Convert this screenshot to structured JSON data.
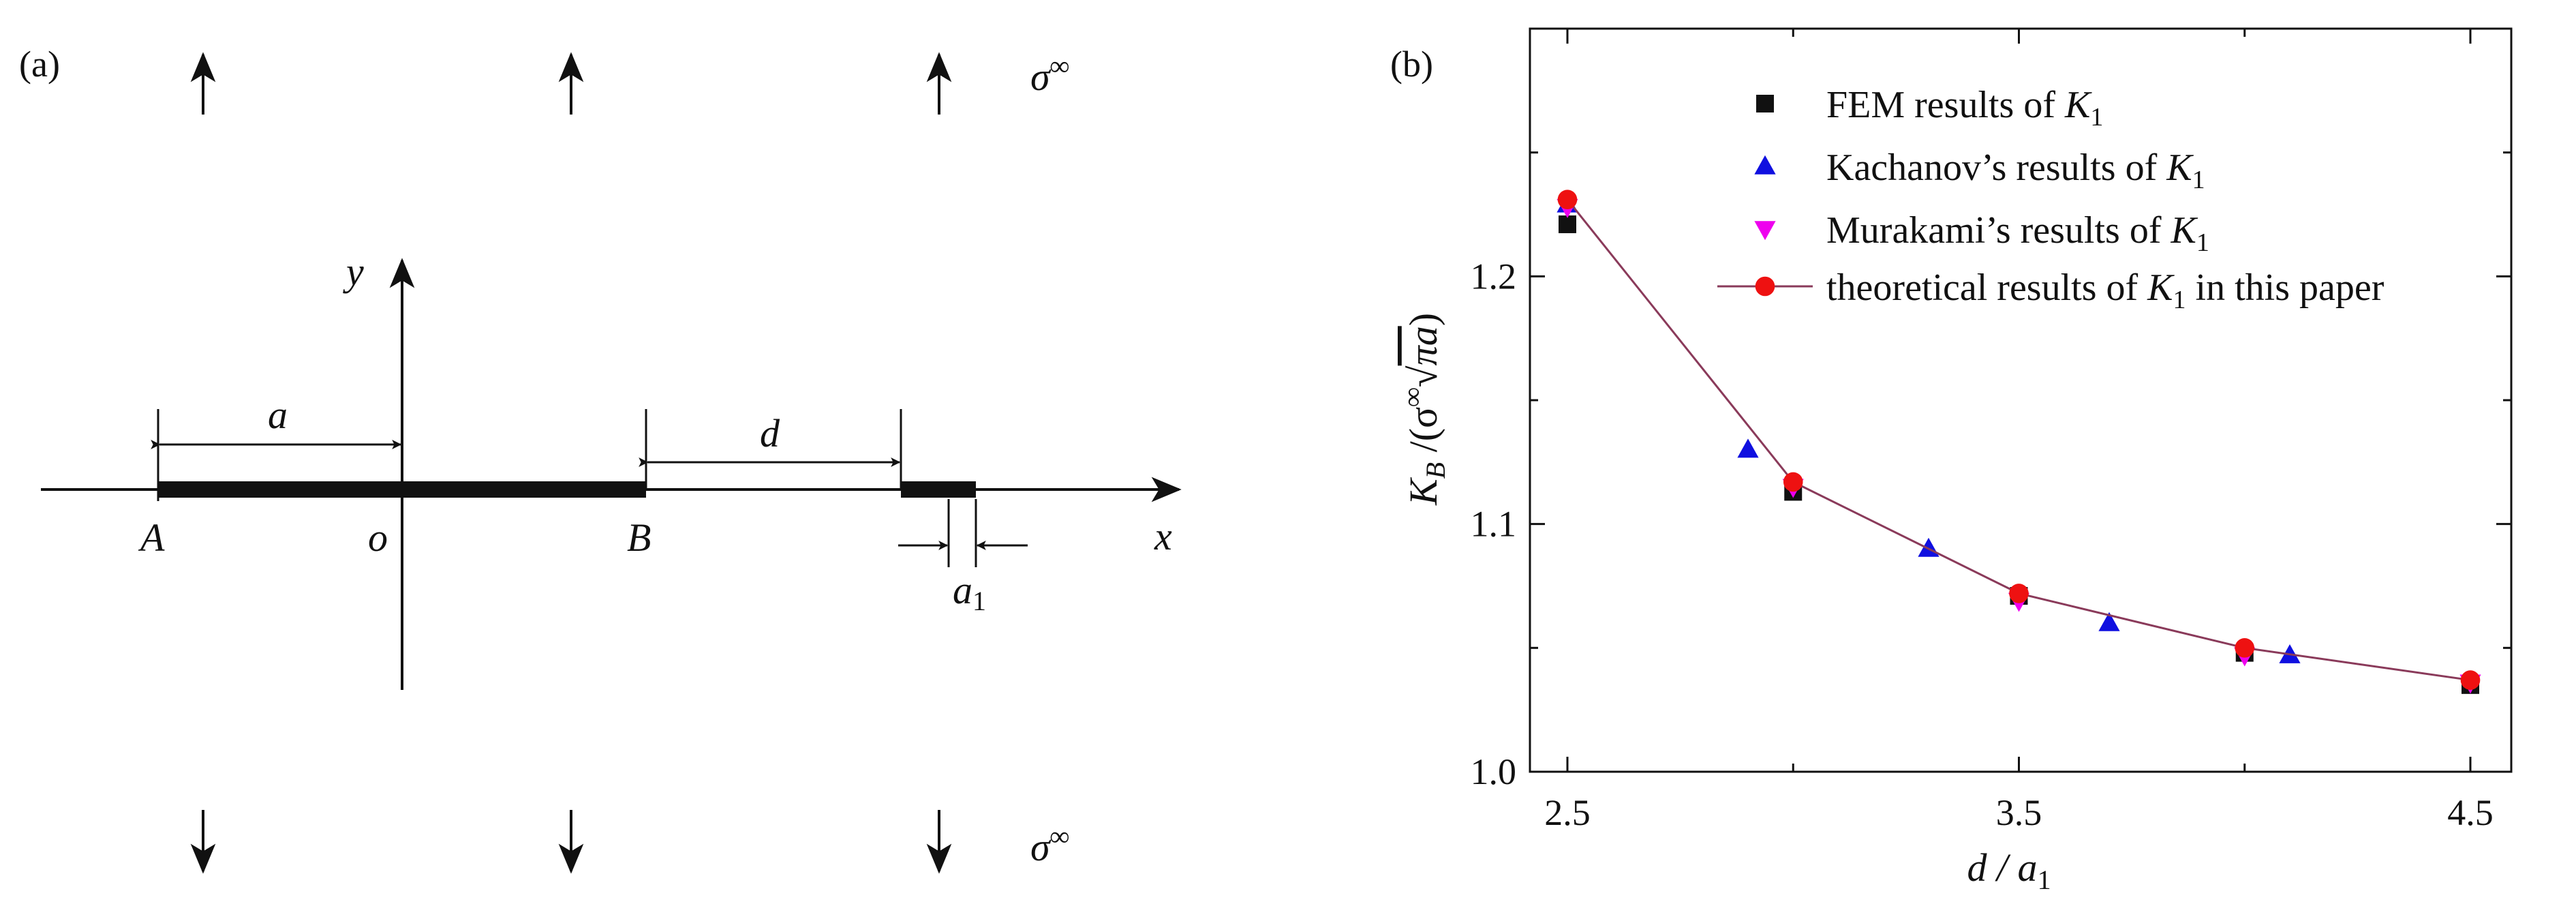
{
  "figure": {
    "panel_a_label": "(a)",
    "panel_b_label": "(b)"
  },
  "diagram": {
    "stress_label": "σ",
    "stress_sup": "∞",
    "y_axis_label": "y",
    "x_axis_label": "x",
    "point_A": "A",
    "origin": "o",
    "point_B": "B",
    "dim_a": "a",
    "dim_d": "d",
    "dim_a1": "a",
    "dim_a1_sub": "1"
  },
  "chart_data": {
    "type": "scatter",
    "xlabel": {
      "main": "d / a",
      "sub": "1"
    },
    "ylabel": {
      "main": "K",
      "sub": "B",
      "rest1": " /(σ",
      "sup": "∞",
      "rest2": "√",
      "over": "πa",
      "rest3": ")"
    },
    "x_ticks": [
      "2.5",
      "3.5",
      "4.5"
    ],
    "y_ticks": [
      "1.0",
      "1.1",
      "1.2"
    ],
    "xlim": [
      2.5,
      4.5
    ],
    "ylim": [
      1.0,
      1.3
    ],
    "legend_position": "top-right",
    "series": [
      {
        "name": "FEM results of K",
        "name_sub": "1",
        "marker": "square",
        "color": "#111111",
        "x": [
          2.5,
          3.0,
          3.5,
          4.0,
          4.5
        ],
        "y": [
          1.221,
          1.113,
          1.071,
          1.048,
          1.035
        ]
      },
      {
        "name": "Kachanov’s results of K",
        "name_sub": "1",
        "marker": "triangle-up",
        "color": "#1010e0",
        "x": [
          2.5,
          2.9,
          3.3,
          3.7,
          4.1
        ],
        "y": [
          1.229,
          1.13,
          1.09,
          1.06,
          1.047
        ]
      },
      {
        "name": "Murakami’s results of K",
        "name_sub": "1",
        "marker": "triangle-down",
        "color": "#ee00ee",
        "x": [
          2.5,
          3.0,
          3.5,
          4.0,
          4.5
        ],
        "y": [
          1.228,
          1.115,
          1.069,
          1.047,
          1.036
        ]
      },
      {
        "name": "theoretical results of K",
        "name_sub": "1",
        "name_suffix": " in this paper",
        "marker": "circle-line",
        "color": "#ee1111",
        "line_color": "#8a3a5a",
        "x": [
          2.5,
          3.0,
          3.5,
          4.0,
          4.5
        ],
        "y": [
          1.231,
          1.117,
          1.072,
          1.05,
          1.037
        ]
      }
    ]
  }
}
